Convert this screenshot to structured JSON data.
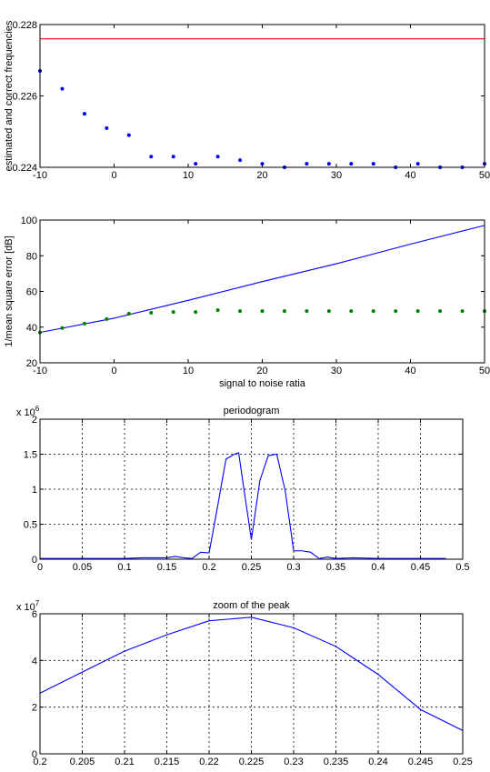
{
  "chart_data": [
    {
      "type": "line",
      "title": "",
      "xlabel": "",
      "ylabel": "estimated and correct frequencies",
      "xlim": [
        -10,
        50
      ],
      "ylim": [
        0.224,
        0.228
      ],
      "xticks": [
        "-10",
        "0",
        "10",
        "20",
        "30",
        "40",
        "50"
      ],
      "yticks": [
        "0.224",
        "0.226",
        "0.228"
      ],
      "grid": false,
      "series": [
        {
          "style": "line",
          "color": "#ff0000",
          "x": [
            -10,
            50
          ],
          "y": [
            0.2276,
            0.2276
          ]
        },
        {
          "style": "markers",
          "color": "#0000ff",
          "x": [
            -10,
            -7,
            -4,
            -1,
            2,
            5,
            8,
            11,
            14,
            17,
            20,
            23,
            26,
            29,
            32,
            35,
            38,
            41,
            44,
            47,
            50
          ],
          "y": [
            0.2267,
            0.2262,
            0.2255,
            0.2251,
            0.2249,
            0.2243,
            0.2243,
            0.2241,
            0.2243,
            0.2242,
            0.2241,
            0.224,
            0.2241,
            0.2241,
            0.2241,
            0.2241,
            0.224,
            0.2241,
            0.224,
            0.224,
            0.2241
          ]
        }
      ]
    },
    {
      "type": "line",
      "title": "",
      "xlabel": "signal to noise ratia",
      "ylabel": "1/mean square error [dB]",
      "xlim": [
        -10,
        50
      ],
      "ylim": [
        20,
        100
      ],
      "xticks": [
        "-10",
        "0",
        "10",
        "20",
        "30",
        "40",
        "50"
      ],
      "yticks": [
        "20",
        "40",
        "60",
        "80",
        "100"
      ],
      "grid": false,
      "series": [
        {
          "style": "line",
          "color": "#0000ff",
          "x": [
            -10,
            0,
            10,
            20,
            30,
            40,
            50
          ],
          "y": [
            37,
            45,
            55,
            65.5,
            75.5,
            86.5,
            97
          ]
        },
        {
          "style": "markers",
          "color": "#008000",
          "x": [
            -10,
            -7,
            -4,
            -1,
            2,
            5,
            8,
            11,
            14,
            17,
            20,
            23,
            26,
            29,
            32,
            35,
            38,
            41,
            44,
            47,
            50
          ],
          "y": [
            37,
            39.5,
            42,
            44.5,
            47.5,
            48,
            48.5,
            48.5,
            49.5,
            49,
            49,
            49,
            49,
            49,
            49,
            49,
            49,
            49,
            49,
            49,
            49
          ]
        }
      ]
    },
    {
      "type": "line",
      "title": "periodogram",
      "xlabel": "",
      "ylabel": "",
      "exponent": "6",
      "xlim": [
        0,
        0.5
      ],
      "ylim": [
        0,
        2
      ],
      "xticks": [
        "0",
        "0.05",
        "0.1",
        "0.15",
        "0.2",
        "0.25",
        "0.3",
        "0.35",
        "0.4",
        "0.45",
        "0.5"
      ],
      "yticks": [
        "0",
        "0.5",
        "1",
        "1.5",
        "2"
      ],
      "grid": true,
      "series": [
        {
          "style": "line",
          "color": "#0000ff",
          "x": [
            0,
            0.04,
            0.08,
            0.1,
            0.12,
            0.13,
            0.15,
            0.16,
            0.17,
            0.18,
            0.19,
            0.2,
            0.21,
            0.22,
            0.23,
            0.235,
            0.24,
            0.25,
            0.26,
            0.27,
            0.28,
            0.29,
            0.3,
            0.31,
            0.32,
            0.33,
            0.34,
            0.35,
            0.37,
            0.4,
            0.45,
            0.48
          ],
          "y": [
            0.01,
            0.01,
            0.01,
            0.01,
            0.02,
            0.02,
            0.02,
            0.04,
            0.02,
            0.01,
            0.1,
            0.09,
            0.75,
            1.43,
            1.5,
            1.52,
            1.1,
            0.28,
            1.12,
            1.48,
            1.5,
            0.98,
            0.12,
            0.12,
            0.1,
            0.01,
            0.03,
            0.01,
            0.02,
            0.01,
            0.01,
            0.01
          ]
        }
      ]
    },
    {
      "type": "line",
      "title": "zoom of the peak",
      "xlabel": "",
      "ylabel": "",
      "exponent": "7",
      "xlim": [
        0.2,
        0.25
      ],
      "ylim": [
        0,
        6
      ],
      "xticks": [
        "0.2",
        "0.205",
        "0.21",
        "0.215",
        "0.22",
        "0.225",
        "0.23",
        "0.235",
        "0.24",
        "0.245",
        "0.25"
      ],
      "yticks": [
        "0",
        "2",
        "4",
        "6"
      ],
      "grid": true,
      "series": [
        {
          "style": "line",
          "color": "#0000ff",
          "x": [
            0.2,
            0.205,
            0.21,
            0.215,
            0.22,
            0.225,
            0.23,
            0.235,
            0.24,
            0.245,
            0.25
          ],
          "y": [
            2.6,
            3.5,
            4.4,
            5.1,
            5.7,
            5.85,
            5.4,
            4.6,
            3.4,
            1.9,
            1.0
          ]
        }
      ]
    }
  ]
}
